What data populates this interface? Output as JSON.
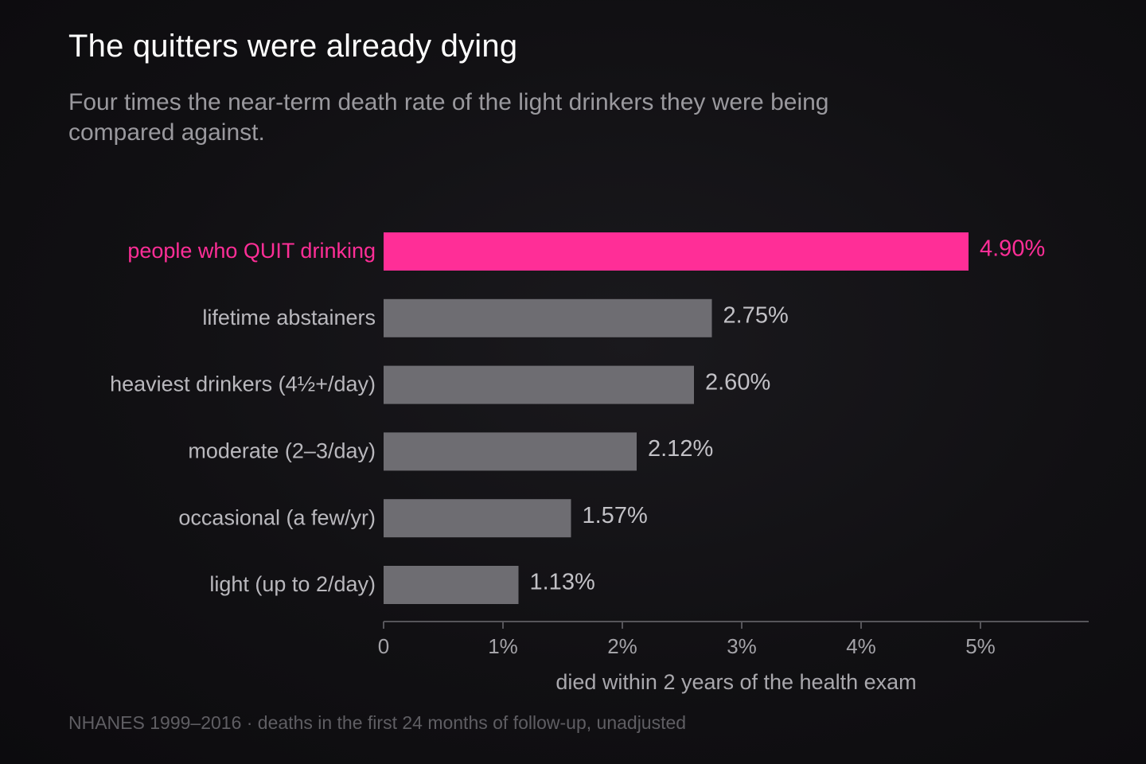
{
  "title": "The quitters were already dying",
  "subtitle": "Four times the near-term death rate of the light drinkers they were being compared against.",
  "source": "NHANES 1999–2016 · deaths in the first 24 months of follow-up, unadjusted",
  "colors": {
    "highlight": "#ff2e97",
    "bar": "#6e6d72",
    "axis": "#56555a"
  },
  "chart_data": {
    "type": "bar",
    "orientation": "horizontal",
    "categories": [
      "people who QUIT drinking",
      "lifetime abstainers",
      "heaviest drinkers (4½+/day)",
      "moderate (2–3/day)",
      "occasional (a few/yr)",
      "light (up to 2/day)"
    ],
    "values": [
      4.9,
      2.75,
      2.6,
      2.12,
      1.57,
      1.13
    ],
    "value_labels": [
      "4.90%",
      "2.75%",
      "2.60%",
      "2.12%",
      "1.57%",
      "1.13%"
    ],
    "highlight_index": 0,
    "xlim": [
      0,
      5.9
    ],
    "xticks": [
      0,
      1,
      2,
      3,
      4,
      5
    ],
    "xtick_labels": [
      "0",
      "1%",
      "2%",
      "3%",
      "4%",
      "5%"
    ],
    "xlabel": "died within 2 years of the health exam",
    "ylabel": "",
    "grid": false,
    "legend": "none"
  }
}
